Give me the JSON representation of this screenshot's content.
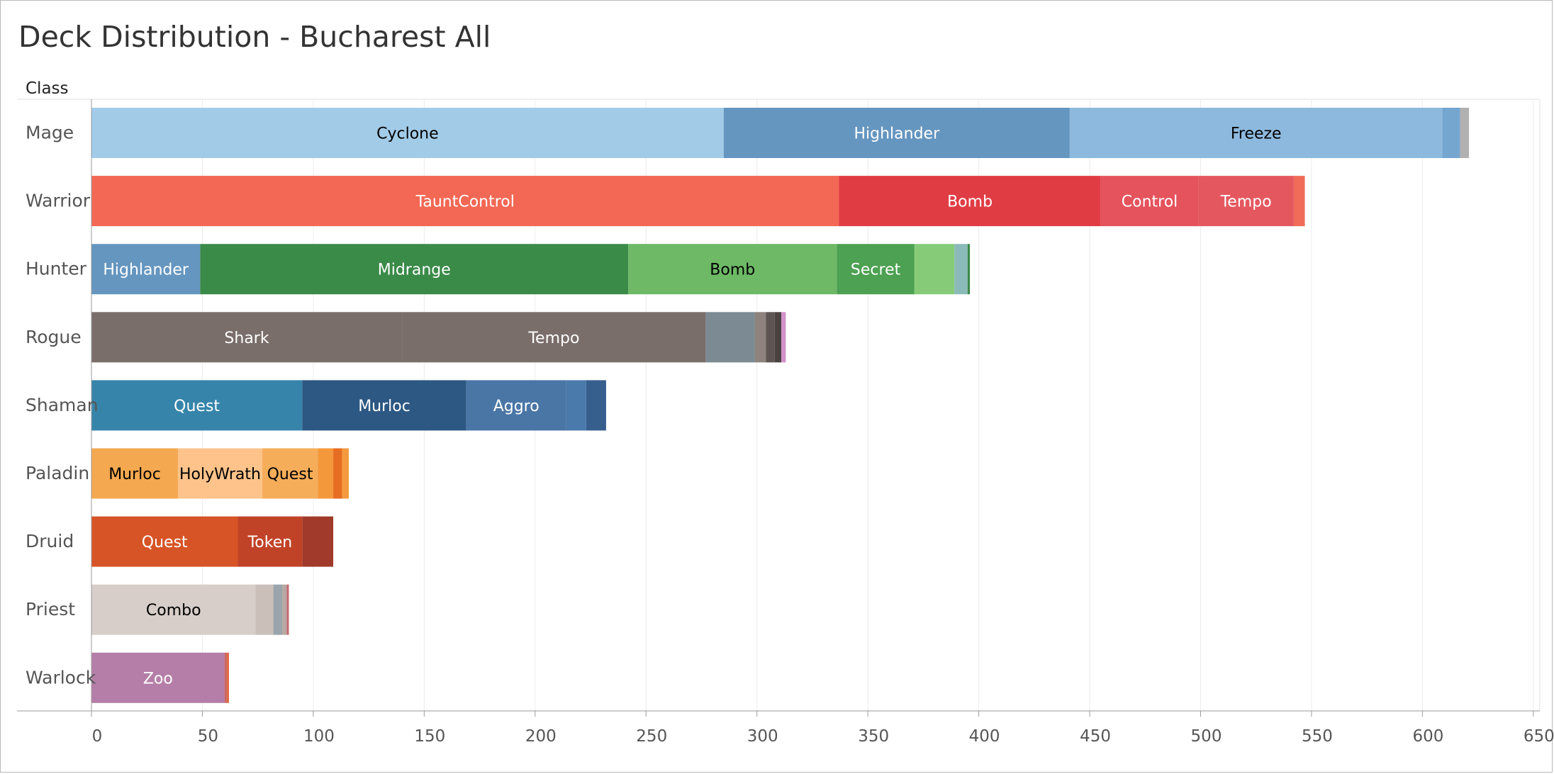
{
  "title": "Deck Distribution - Bucharest All",
  "chart_data": {
    "type": "bar",
    "orientation": "horizontal",
    "stacked": true,
    "row_header": "Class",
    "xlim": [
      0,
      650
    ],
    "xticks": [
      0,
      50,
      100,
      150,
      200,
      250,
      300,
      350,
      400,
      450,
      500,
      550,
      600,
      650
    ],
    "grid": true,
    "categories": [
      "Mage",
      "Warrior",
      "Hunter",
      "Rogue",
      "Shaman",
      "Paladin",
      "Druid",
      "Priest",
      "Warlock"
    ],
    "rows": [
      {
        "class": "Mage",
        "segments": [
          {
            "label": "Cyclone",
            "value": 285,
            "color": "#a2cbe8",
            "text_color": "#000000"
          },
          {
            "label": "Highlander",
            "value": 156,
            "color": "#6596c0",
            "text_color": "#ffffff"
          },
          {
            "label": "Freeze",
            "value": 168,
            "color": "#8db9de",
            "text_color": "#000000"
          },
          {
            "label": "",
            "value": 8,
            "color": "#74a6d0"
          },
          {
            "label": "",
            "value": 4,
            "color": "#b1b1b1"
          }
        ]
      },
      {
        "class": "Warrior",
        "segments": [
          {
            "label": "TauntControl",
            "value": 337,
            "color": "#f26854",
            "text_color": "#ffffff"
          },
          {
            "label": "Bomb",
            "value": 118,
            "color": "#e03c44",
            "text_color": "#ffffff"
          },
          {
            "label": "Control",
            "value": 44,
            "color": "#e5535c",
            "text_color": "#ffffff"
          },
          {
            "label": "Tempo",
            "value": 43,
            "color": "#e5575f",
            "text_color": "#ffffff"
          },
          {
            "label": "",
            "value": 5,
            "color": "#f06c58"
          }
        ]
      },
      {
        "class": "Hunter",
        "segments": [
          {
            "label": "Highlander",
            "value": 49,
            "color": "#6596c0",
            "text_color": "#ffffff"
          },
          {
            "label": "Midrange",
            "value": 193,
            "color": "#3a8a48",
            "text_color": "#ffffff"
          },
          {
            "label": "Bomb",
            "value": 94,
            "color": "#6db965",
            "text_color": "#000000"
          },
          {
            "label": "Secret",
            "value": 35,
            "color": "#4da152",
            "text_color": "#ffffff"
          },
          {
            "label": "",
            "value": 18,
            "color": "#86cc78"
          },
          {
            "label": "",
            "value": 6,
            "color": "#8bbbb8"
          },
          {
            "label": "",
            "value": 1,
            "color": "#3a8a48"
          }
        ]
      },
      {
        "class": "Rogue",
        "segments": [
          {
            "label": "Shark",
            "value": 140,
            "color": "#7a6e6b",
            "text_color": "#ffffff"
          },
          {
            "label": "Tempo",
            "value": 137,
            "color": "#7a6e6b",
            "text_color": "#ffffff"
          },
          {
            "label": "",
            "value": 22,
            "color": "#7c8b93"
          },
          {
            "label": "",
            "value": 5,
            "color": "#8d827d"
          },
          {
            "label": "",
            "value": 4,
            "color": "#5e5553"
          },
          {
            "label": "",
            "value": 3,
            "color": "#4a4240"
          },
          {
            "label": "",
            "value": 2,
            "color": "#d291c8"
          }
        ]
      },
      {
        "class": "Shaman",
        "segments": [
          {
            "label": "Quest",
            "value": 95,
            "color": "#3684aa",
            "text_color": "#ffffff"
          },
          {
            "label": "Murloc",
            "value": 74,
            "color": "#2c5883",
            "text_color": "#ffffff"
          },
          {
            "label": "Aggro",
            "value": 45,
            "color": "#4a76a6",
            "text_color": "#ffffff"
          },
          {
            "label": "",
            "value": 9,
            "color": "#4a7aab"
          },
          {
            "label": "",
            "value": 9,
            "color": "#365f8e"
          }
        ]
      },
      {
        "class": "Paladin",
        "segments": [
          {
            "label": "Murloc",
            "value": 39,
            "color": "#f4a850",
            "text_color": "#000000"
          },
          {
            "label": "HolyWrath",
            "value": 38,
            "color": "#fdc38a",
            "text_color": "#000000"
          },
          {
            "label": "Quest",
            "value": 25,
            "color": "#f6ad5a",
            "text_color": "#000000"
          },
          {
            "label": "",
            "value": 7,
            "color": "#f4983c"
          },
          {
            "label": "",
            "value": 4,
            "color": "#e66d21"
          },
          {
            "label": "",
            "value": 3,
            "color": "#f39a3f"
          }
        ]
      },
      {
        "class": "Druid",
        "segments": [
          {
            "label": "Quest",
            "value": 66,
            "color": "#d75426",
            "text_color": "#ffffff"
          },
          {
            "label": "Token",
            "value": 29,
            "color": "#c14327",
            "text_color": "#ffffff"
          },
          {
            "label": "",
            "value": 14,
            "color": "#a13a2b"
          }
        ]
      },
      {
        "class": "Priest",
        "segments": [
          {
            "label": "Combo",
            "value": 74,
            "color": "#d7cdc9",
            "text_color": "#000000"
          },
          {
            "label": "",
            "value": 8,
            "color": "#cbbfb9"
          },
          {
            "label": "",
            "value": 4,
            "color": "#9aa4ab"
          },
          {
            "label": "",
            "value": 2,
            "color": "#b6a8a2"
          },
          {
            "label": "",
            "value": 1,
            "color": "#c46a73"
          }
        ]
      },
      {
        "class": "Warlock",
        "segments": [
          {
            "label": "Zoo",
            "value": 60,
            "color": "#b57ea8",
            "text_color": "#ffffff"
          },
          {
            "label": "",
            "value": 1,
            "color": "#c8635f"
          },
          {
            "label": "",
            "value": 1,
            "color": "#e06c45"
          }
        ]
      }
    ]
  }
}
